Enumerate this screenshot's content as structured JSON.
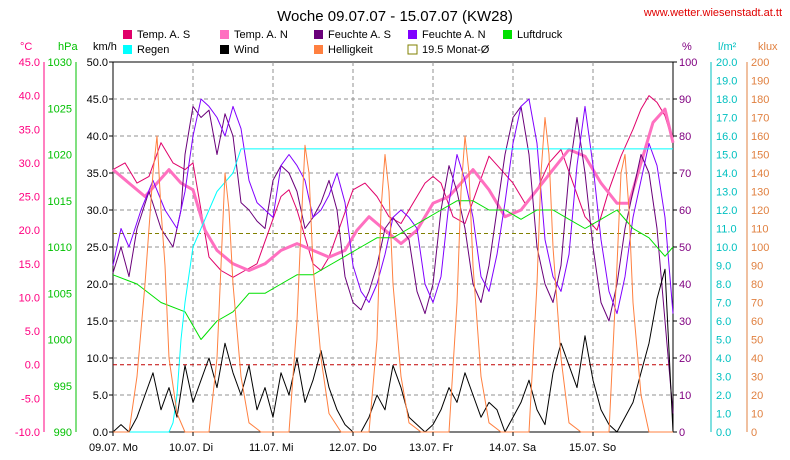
{
  "chart_data": {
    "type": "line",
    "title": "Woche 09.07.07 - 15.07.07 (KW28)",
    "source": "www.wetter.wiesenstadt.at.tt",
    "x_tick_labels": [
      "09.07. Mo",
      "10.07. Di",
      "11.07. Mi",
      "12.07. Do",
      "13.07. Fr",
      "14.07. Sa",
      "15.07. So"
    ],
    "x_domain_days": [
      0,
      7
    ],
    "axes": {
      "temp": {
        "unit": "°C",
        "color": "#ff0080",
        "range": [
          -10,
          45
        ],
        "ticks": [
          "45.0",
          "40.0",
          "35.0",
          "30.0",
          "25.0",
          "20.0",
          "15.0",
          "10.0",
          "5.0",
          "0.0",
          "-5.0",
          "-10.0"
        ]
      },
      "press": {
        "unit": "hPa",
        "color": "#00c000",
        "range": [
          990,
          1030
        ],
        "ticks": [
          "1030",
          "1025",
          "1020",
          "1015",
          "1010",
          "1005",
          "1000",
          "995",
          "990"
        ]
      },
      "wind": {
        "unit": "km/h",
        "color": "#000000",
        "range": [
          0,
          50
        ],
        "ticks": [
          "50.0",
          "45.0",
          "40.0",
          "35.0",
          "30.0",
          "25.0",
          "20.0",
          "15.0",
          "10.0",
          "5.0",
          "0.0"
        ]
      },
      "hum": {
        "unit": "%",
        "color": "#800080",
        "range": [
          0,
          100
        ],
        "ticks": [
          "100",
          "90",
          "80",
          "70",
          "60",
          "50",
          "40",
          "30",
          "20",
          "10",
          "0"
        ]
      },
      "rain": {
        "unit": "l/m²",
        "color": "#00c0c0",
        "range": [
          0,
          20
        ],
        "ticks": [
          "20.0",
          "19.0",
          "18.0",
          "17.0",
          "16.0",
          "15.0",
          "14.0",
          "13.0",
          "12.0",
          "11.0",
          "10.0",
          "9.0",
          "8.0",
          "7.0",
          "6.0",
          "5.0",
          "4.0",
          "3.0",
          "2.0",
          "1.0",
          "0.0"
        ]
      },
      "lux": {
        "unit": "klux",
        "color": "#e08040",
        "range": [
          0,
          200
        ],
        "ticks": [
          "200",
          "190",
          "180",
          "170",
          "160",
          "150",
          "140",
          "130",
          "120",
          "110",
          "100",
          "90",
          "80",
          "70",
          "60",
          "50",
          "40",
          "30",
          "20",
          "10",
          "0"
        ]
      }
    },
    "legend": [
      {
        "label": "Temp. A. S",
        "color": "#e0006a",
        "style": "box"
      },
      {
        "label": "Temp. A. N",
        "color": "#ff70c0",
        "style": "box"
      },
      {
        "label": "Feuchte A. S",
        "color": "#6a007a",
        "style": "box"
      },
      {
        "label": "Feuchte A. N",
        "color": "#8000ff",
        "style": "box"
      },
      {
        "label": "Luftdruck",
        "color": "#00e000",
        "style": "box"
      },
      {
        "label": "Regen",
        "color": "#00ffff",
        "style": "box"
      },
      {
        "label": "Wind",
        "color": "#000000",
        "style": "box"
      },
      {
        "label": "Helligkeit",
        "color": "#ff8040",
        "style": "box"
      },
      {
        "label": "19.5 Monat-Ø",
        "color": "#808000",
        "style": "hollow"
      }
    ],
    "reference_lines": [
      {
        "axis": "temp",
        "value": 19.5,
        "color": "#808000"
      },
      {
        "axis": "temp",
        "value": 0.0,
        "color": "#c00000"
      }
    ],
    "series": [
      {
        "name": "Temp. A. S",
        "axis": "temp",
        "color": "#e0006a",
        "width": 1,
        "x": [
          0,
          0.15,
          0.3,
          0.45,
          0.6,
          0.75,
          0.9,
          1.0,
          1.1,
          1.2,
          1.35,
          1.5,
          1.65,
          1.8,
          1.95,
          2.1,
          2.2,
          2.3,
          2.4,
          2.5,
          2.6,
          2.7,
          2.85,
          3.0,
          3.15,
          3.3,
          3.45,
          3.6,
          3.75,
          3.9,
          4.0,
          4.1,
          4.25,
          4.4,
          4.55,
          4.7,
          4.85,
          5.0,
          5.15,
          5.3,
          5.45,
          5.6,
          5.75,
          5.9,
          6.05,
          6.2,
          6.35,
          6.5,
          6.6,
          6.7,
          6.8,
          6.9,
          7.0
        ],
        "y": [
          29,
          30,
          27,
          28,
          33,
          30,
          29,
          30,
          23,
          16,
          14,
          13,
          14,
          15,
          20,
          25,
          26,
          23,
          19,
          15,
          14,
          16,
          21,
          26,
          27,
          25,
          22,
          21,
          24,
          27,
          28,
          27,
          22,
          21,
          26,
          31,
          29,
          27,
          24,
          26,
          30,
          32,
          27,
          22,
          20,
          26,
          31,
          35,
          38,
          40,
          39,
          37,
          33
        ]
      },
      {
        "name": "Temp. A. N",
        "axis": "temp",
        "color": "#ff70c0",
        "width": 3,
        "x": [
          0,
          0.2,
          0.4,
          0.55,
          0.7,
          0.85,
          1.0,
          1.15,
          1.3,
          1.5,
          1.7,
          1.9,
          2.1,
          2.3,
          2.5,
          2.7,
          2.9,
          3.05,
          3.2,
          3.4,
          3.6,
          3.8,
          4.0,
          4.2,
          4.35,
          4.5,
          4.7,
          4.9,
          5.1,
          5.3,
          5.5,
          5.7,
          5.9,
          6.1,
          6.3,
          6.45,
          6.6,
          6.75,
          6.9,
          7.0
        ],
        "y": [
          29,
          27,
          25,
          27,
          29,
          27,
          26,
          20,
          17,
          15,
          14,
          15,
          17,
          18,
          17,
          16,
          17,
          20,
          22,
          20,
          18,
          20,
          24,
          25,
          27,
          29,
          26,
          22,
          23,
          26,
          29,
          32,
          31,
          27,
          24,
          24,
          30,
          36,
          38,
          33
        ]
      },
      {
        "name": "Feuchte A. S",
        "axis": "hum",
        "color": "#6a007a",
        "width": 1,
        "x": [
          0,
          0.1,
          0.2,
          0.3,
          0.45,
          0.6,
          0.75,
          0.85,
          0.9,
          1.0,
          1.1,
          1.2,
          1.3,
          1.4,
          1.5,
          1.6,
          1.7,
          1.8,
          1.9,
          2.0,
          2.1,
          2.2,
          2.3,
          2.4,
          2.5,
          2.6,
          2.7,
          2.8,
          2.9,
          3.0,
          3.1,
          3.2,
          3.3,
          3.4,
          3.5,
          3.6,
          3.7,
          3.8,
          3.9,
          4.0,
          4.1,
          4.2,
          4.3,
          4.4,
          4.5,
          4.6,
          4.7,
          4.8,
          4.9,
          5.0,
          5.1,
          5.2,
          5.3,
          5.4,
          5.5,
          5.6,
          5.7,
          5.8,
          5.9,
          6.0,
          6.1,
          6.2,
          6.3,
          6.4,
          6.5,
          6.6,
          6.7,
          6.8,
          6.9,
          7.0
        ],
        "y": [
          43,
          50,
          42,
          55,
          65,
          55,
          50,
          60,
          75,
          88,
          85,
          87,
          75,
          86,
          80,
          62,
          60,
          57,
          55,
          68,
          72,
          70,
          65,
          55,
          58,
          62,
          68,
          60,
          42,
          35,
          33,
          38,
          45,
          55,
          58,
          55,
          52,
          38,
          32,
          40,
          60,
          72,
          65,
          55,
          40,
          35,
          45,
          60,
          75,
          85,
          88,
          75,
          50,
          40,
          35,
          45,
          70,
          85,
          70,
          50,
          35,
          30,
          40,
          55,
          65,
          75,
          70,
          55,
          30,
          5
        ]
      },
      {
        "name": "Feuchte A. N",
        "axis": "hum",
        "color": "#8000ff",
        "width": 1,
        "x": [
          0,
          0.1,
          0.2,
          0.35,
          0.5,
          0.65,
          0.8,
          0.9,
          1.0,
          1.1,
          1.2,
          1.3,
          1.4,
          1.5,
          1.6,
          1.7,
          1.8,
          1.9,
          2.0,
          2.1,
          2.2,
          2.3,
          2.4,
          2.5,
          2.6,
          2.7,
          2.8,
          2.9,
          3.0,
          3.1,
          3.2,
          3.3,
          3.4,
          3.5,
          3.6,
          3.7,
          3.8,
          3.9,
          4.0,
          4.1,
          4.2,
          4.3,
          4.4,
          4.5,
          4.6,
          4.7,
          4.8,
          4.9,
          5.0,
          5.1,
          5.2,
          5.3,
          5.4,
          5.5,
          5.6,
          5.7,
          5.8,
          5.9,
          6.0,
          6.1,
          6.2,
          6.3,
          6.4,
          6.5,
          6.6,
          6.7,
          6.8,
          6.9,
          7.0
        ],
        "y": [
          45,
          55,
          50,
          60,
          68,
          60,
          55,
          65,
          80,
          90,
          88,
          85,
          80,
          88,
          82,
          68,
          62,
          60,
          58,
          72,
          75,
          72,
          68,
          58,
          60,
          64,
          70,
          62,
          45,
          38,
          35,
          40,
          48,
          58,
          60,
          58,
          55,
          40,
          35,
          42,
          62,
          75,
          68,
          58,
          42,
          38,
          48,
          62,
          78,
          88,
          90,
          78,
          52,
          42,
          38,
          48,
          72,
          88,
          72,
          52,
          38,
          32,
          42,
          58,
          68,
          78,
          72,
          58,
          32
        ]
      },
      {
        "name": "Luftdruck",
        "axis": "press",
        "color": "#00e000",
        "width": 1,
        "x": [
          0,
          0.3,
          0.6,
          0.9,
          1.1,
          1.3,
          1.5,
          1.7,
          1.9,
          2.1,
          2.3,
          2.5,
          2.7,
          2.9,
          3.1,
          3.3,
          3.5,
          3.7,
          3.9,
          4.1,
          4.3,
          4.5,
          4.7,
          4.9,
          5.1,
          5.3,
          5.5,
          5.7,
          5.9,
          6.1,
          6.3,
          6.5,
          6.7,
          6.9,
          7.0
        ],
        "y": [
          1007,
          1006,
          1004,
          1003,
          1000,
          1002,
          1003,
          1005,
          1005,
          1006,
          1007,
          1007,
          1008,
          1009,
          1010,
          1011,
          1011,
          1012,
          1013,
          1014,
          1015,
          1015,
          1014,
          1014,
          1013,
          1014,
          1014,
          1013,
          1012,
          1013,
          1014,
          1012,
          1011,
          1009,
          1010
        ]
      },
      {
        "name": "Regen",
        "axis": "rain",
        "color": "#00ffff",
        "width": 1,
        "x": [
          0,
          0.5,
          0.7,
          0.75,
          0.8,
          0.85,
          0.9,
          1.0,
          1.1,
          1.2,
          1.3,
          1.4,
          1.5,
          1.6,
          2.0,
          3.0,
          4.0,
          5.0,
          6.0,
          6.5,
          7.0
        ],
        "y": [
          0,
          0,
          0,
          0.5,
          2,
          5,
          7,
          10,
          11,
          12,
          13,
          13.5,
          14,
          15.3,
          15.3,
          15.3,
          15.3,
          15.3,
          15.3,
          15.3,
          15.3
        ]
      },
      {
        "name": "Wind",
        "axis": "wind",
        "color": "#000000",
        "width": 1,
        "x": [
          0,
          0.1,
          0.2,
          0.3,
          0.4,
          0.5,
          0.6,
          0.7,
          0.8,
          0.9,
          1.0,
          1.1,
          1.2,
          1.3,
          1.4,
          1.5,
          1.6,
          1.7,
          1.8,
          1.9,
          2.0,
          2.1,
          2.2,
          2.3,
          2.4,
          2.5,
          2.6,
          2.7,
          2.8,
          2.9,
          3.0,
          3.1,
          3.2,
          3.3,
          3.4,
          3.5,
          3.6,
          3.7,
          3.8,
          3.9,
          4.0,
          4.1,
          4.2,
          4.3,
          4.4,
          4.5,
          4.6,
          4.7,
          4.8,
          4.9,
          5.0,
          5.1,
          5.2,
          5.3,
          5.4,
          5.5,
          5.6,
          5.7,
          5.8,
          5.9,
          6.0,
          6.1,
          6.2,
          6.3,
          6.4,
          6.5,
          6.6,
          6.7,
          6.8,
          6.9,
          7.0
        ],
        "y": [
          0,
          1,
          0,
          2,
          5,
          8,
          3,
          6,
          2,
          9,
          4,
          7,
          10,
          6,
          12,
          8,
          5,
          9,
          3,
          6,
          2,
          8,
          5,
          10,
          4,
          7,
          11,
          6,
          3,
          1,
          0,
          0,
          2,
          5,
          3,
          9,
          6,
          2,
          1,
          0,
          1,
          3,
          6,
          4,
          8,
          5,
          2,
          4,
          3,
          0,
          2,
          4,
          7,
          3,
          1,
          8,
          12,
          9,
          6,
          13,
          7,
          3,
          1,
          0,
          2,
          4,
          8,
          12,
          18,
          22,
          0
        ]
      },
      {
        "name": "Helligkeit",
        "axis": "lux",
        "color": "#ff8040",
        "width": 1,
        "x": [
          0,
          0.2,
          0.3,
          0.4,
          0.5,
          0.55,
          0.6,
          0.65,
          0.7,
          0.8,
          0.9,
          1.0,
          1.2,
          1.3,
          1.35,
          1.4,
          1.45,
          1.5,
          1.6,
          1.7,
          1.85,
          2.0,
          2.2,
          2.3,
          2.35,
          2.4,
          2.45,
          2.5,
          2.6,
          2.7,
          2.85,
          3.0,
          3.2,
          3.3,
          3.35,
          3.4,
          3.45,
          3.5,
          3.6,
          3.7,
          3.85,
          4.0,
          4.2,
          4.3,
          4.35,
          4.4,
          4.45,
          4.5,
          4.6,
          4.7,
          4.85,
          5.0,
          5.2,
          5.3,
          5.35,
          5.4,
          5.45,
          5.5,
          5.6,
          5.7,
          5.85,
          6.0,
          6.2,
          6.3,
          6.35,
          6.4,
          6.45,
          6.5,
          6.6,
          6.7,
          6.85,
          7.0
        ],
        "y": [
          0,
          0,
          30,
          80,
          140,
          160,
          120,
          90,
          40,
          10,
          0,
          0,
          0,
          40,
          90,
          140,
          120,
          80,
          30,
          5,
          0,
          0,
          0,
          60,
          110,
          155,
          140,
          90,
          40,
          10,
          0,
          0,
          0,
          50,
          120,
          150,
          130,
          80,
          30,
          5,
          0,
          0,
          0,
          70,
          130,
          160,
          140,
          90,
          30,
          5,
          0,
          0,
          0,
          80,
          140,
          170,
          150,
          100,
          40,
          5,
          0,
          0,
          0,
          90,
          140,
          150,
          120,
          70,
          20,
          0,
          0,
          0
        ]
      }
    ]
  }
}
